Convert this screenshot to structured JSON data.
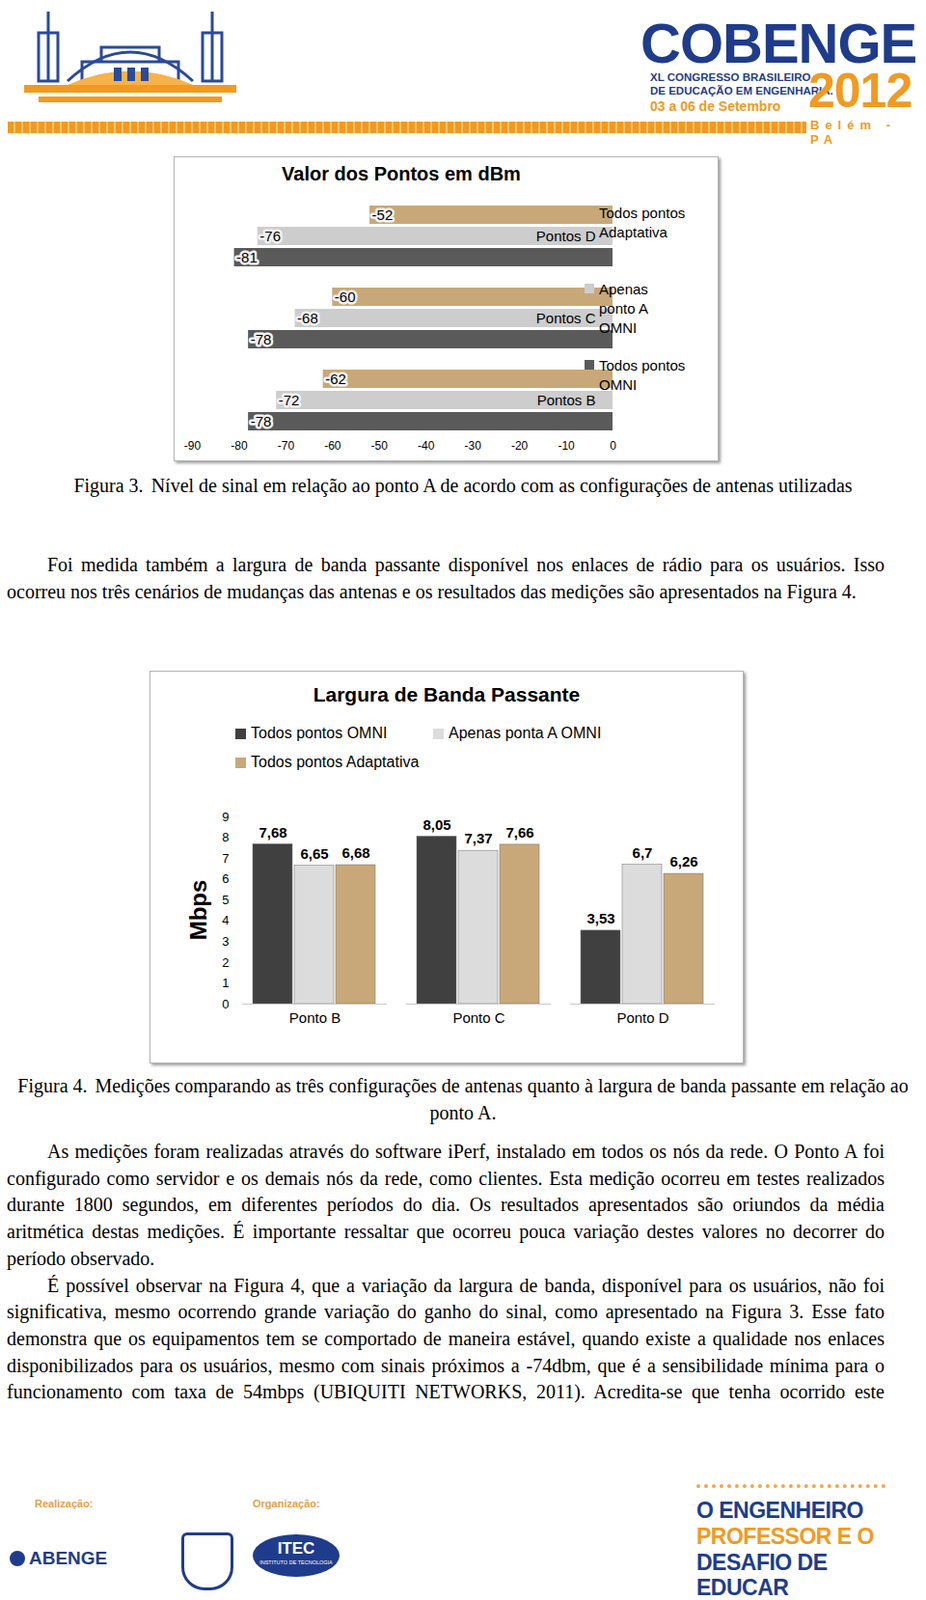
{
  "header": {
    "event": "COBENGE",
    "subtitle_lines": [
      "XL CONGRESSO BRASILEIRO",
      "DE EDUCAÇÃO EM ENGENHARIA."
    ],
    "dates": "03 a 06 de Setembro",
    "year": "2012",
    "place": "Belém - PA"
  },
  "chart_data": [
    {
      "type": "bar",
      "title": "Valor dos Pontos em dBm",
      "orientation": "horizontal",
      "categories": [
        "Pontos B",
        "Pontos C",
        "Pontos D"
      ],
      "series": [
        {
          "name": "Todos pontos OMNI",
          "color": "#5a5a5a",
          "values": [
            -78,
            -78,
            -81
          ]
        },
        {
          "name": "Apenas ponto A OMNI",
          "color": "#cdcdcd",
          "values": [
            -72,
            -68,
            -76
          ]
        },
        {
          "name": "Todos pontos Adaptativa",
          "color": "#c8a878",
          "values": [
            -62,
            -60,
            -52
          ]
        }
      ],
      "xlim": [
        -90,
        0
      ],
      "xticks": [
        -90,
        -80,
        -70,
        -60,
        -50,
        -40,
        -30,
        -20,
        -10,
        0
      ],
      "grid": false,
      "legend": "right",
      "data_labels": true
    },
    {
      "type": "bar",
      "title": "Largura de Banda Passante",
      "y_label": "Mbps",
      "categories": [
        "Ponto B",
        "Ponto C",
        "Ponto D"
      ],
      "series": [
        {
          "name": "Todos pontos OMNI",
          "color": "#404040",
          "values": [
            7.68,
            8.05,
            3.53
          ],
          "value_labels": [
            "7,68",
            "8,05",
            "3,53"
          ]
        },
        {
          "name": "Apenas ponta A OMNI",
          "color": "#dcdcdc",
          "values": [
            6.65,
            7.37,
            6.7
          ],
          "value_labels": [
            "6,65",
            "7,37",
            "6,7"
          ]
        },
        {
          "name": "Todos pontos Adaptativa",
          "color": "#c8a878",
          "values": [
            6.68,
            7.66,
            6.26
          ],
          "value_labels": [
            "6,68",
            "7,66",
            "6,26"
          ]
        }
      ],
      "ylim": [
        0,
        9
      ],
      "yticks": [
        0,
        1,
        2,
        3,
        4,
        5,
        6,
        7,
        8,
        9
      ],
      "grid": false,
      "legend": "top",
      "data_labels": true
    }
  ],
  "captions": [
    {
      "label": "Figura 3.",
      "text": "Nível de sinal em relação ao ponto A de acordo com as configurações de antenas utilizadas"
    },
    {
      "label": "Figura 4.",
      "text": "Medições comparando as três configurações de antenas quanto à largura de banda passante em relação ao ponto A."
    }
  ],
  "paragraphs": [
    "Foi medida também a largura de banda passante disponível nos enlaces de rádio para os usuários. Isso ocorreu nos três cenários de mudanças das antenas e os resultados das medições são apresentados na Figura 4.",
    "As medições foram realizadas através do software iPerf, instalado em todos os nós da rede. O Ponto A foi configurado como servidor e os demais nós da rede, como clientes. Esta medição ocorreu em testes realizados durante 1800 segundos, em diferentes períodos do dia. Os resultados apresentados são oriundos da média aritmética destas medições. É importante ressaltar que ocorreu pouca variação destes valores no decorrer do período observado.",
    "É possível observar na Figura 4, que a variação da largura de banda, disponível para os usuários, não foi significativa, mesmo ocorrendo grande variação do ganho do sinal, como apresentado na Figura 3. Esse fato demonstra que os equipamentos tem se comportado de maneira estável, quando existe a qualidade nos enlaces disponibilizados para os usuários, mesmo com sinais próximos a -74dbm, que é a sensibilidade mínima para o funcionamento com taxa de 54mbps (UBIQUITI NETWORKS, 2011). Acredita-se que tenha ocorrido este"
  ],
  "footer": {
    "realizacao": "Realização:",
    "realizacao_org": "ABENGE",
    "organizacao": "Organização:",
    "organizacao_org": "ITEC",
    "organizacao_org_full": "INSTITUTO DE TECNOLOGIA",
    "slogan": [
      "O ENGENHEIRO",
      "PROFESSOR E O",
      "DESAFIO DE EDUCAR"
    ]
  }
}
